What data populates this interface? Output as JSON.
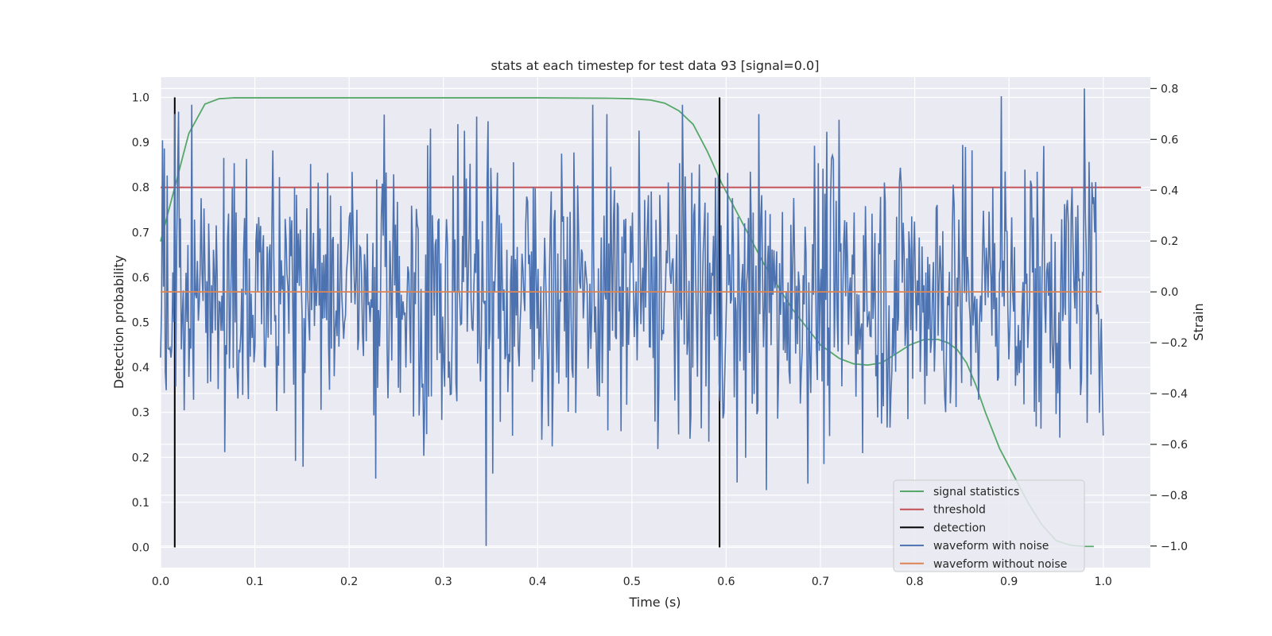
{
  "chart_data": {
    "type": "line",
    "title": "stats at each timestep for test data 93 [signal=0.0]",
    "xlabel": "Time (s)",
    "ylabel": "Detection probability",
    "y2label": "Strain",
    "xlim": [
      0.0,
      1.05
    ],
    "ylim": [
      -0.045,
      1.045
    ],
    "y2lim": [
      -1.085,
      0.845
    ],
    "xticks": [
      "0.0",
      "0.1",
      "0.2",
      "0.3",
      "0.4",
      "0.5",
      "0.6",
      "0.7",
      "0.8",
      "0.9",
      "1.0"
    ],
    "yticks": [
      "0.0",
      "0.1",
      "0.2",
      "0.3",
      "0.4",
      "0.5",
      "0.6",
      "0.7",
      "0.8",
      "0.9",
      "1.0"
    ],
    "y2ticks": [
      "−1.0",
      "−0.8",
      "−0.6",
      "−0.4",
      "−0.2",
      "0.0",
      "0.2",
      "0.4",
      "0.6",
      "0.8"
    ],
    "grid": true,
    "legend_position": "lower-right",
    "legend": [
      "signal statistics",
      "threshold",
      "detection",
      "waveform with noise",
      "waveform without noise"
    ],
    "colors": {
      "signal_statistics": "#55a868",
      "threshold": "#c44e52",
      "detection": "#000000",
      "waveform_with_noise": "#4c72b0",
      "waveform_without_noise": "#dd8452",
      "background": "#eaeaf2"
    },
    "signal_statistics": {
      "x": [
        0.0,
        0.015,
        0.03,
        0.047,
        0.062,
        0.078,
        0.1,
        0.2,
        0.3,
        0.4,
        0.48,
        0.5,
        0.52,
        0.535,
        0.55,
        0.565,
        0.58,
        0.595,
        0.61,
        0.625,
        0.64,
        0.655,
        0.67,
        0.685,
        0.7,
        0.72,
        0.735,
        0.75,
        0.765,
        0.78,
        0.795,
        0.81,
        0.825,
        0.835,
        0.845,
        0.855,
        0.865,
        0.875,
        0.89,
        0.905,
        0.92,
        0.935,
        0.95,
        0.965,
        0.98,
        0.99
      ],
      "y": [
        0.68,
        0.8,
        0.92,
        0.985,
        0.997,
        0.999,
        0.999,
        0.999,
        0.999,
        0.999,
        0.998,
        0.997,
        0.994,
        0.987,
        0.97,
        0.94,
        0.88,
        0.81,
        0.75,
        0.69,
        0.63,
        0.58,
        0.53,
        0.49,
        0.45,
        0.42,
        0.408,
        0.405,
        0.41,
        0.43,
        0.45,
        0.462,
        0.462,
        0.455,
        0.44,
        0.41,
        0.36,
        0.3,
        0.22,
        0.16,
        0.1,
        0.05,
        0.015,
        0.005,
        0.002,
        0.002
      ]
    },
    "threshold": {
      "value": 0.8,
      "x": [
        0.0,
        1.04
      ]
    },
    "detections": [
      0.015,
      0.593
    ],
    "waveform_without_noise": {
      "value": 0.0,
      "x": [
        0.0,
        0.998
      ]
    },
    "waveform_with_noise": {
      "x_range": [
        0.0,
        1.0
      ],
      "num_points": 1000,
      "y_range_strain": [
        -1.0,
        0.8
      ],
      "std_strain": 0.28,
      "spike_points": [
        [
          0.345,
          -1.0
        ],
        [
          0.015,
          0.7
        ],
        [
          0.335,
          0.69
        ],
        [
          0.98,
          0.8
        ],
        [
          0.892,
          0.77
        ],
        [
          0.643,
          -0.78
        ],
        [
          0.612,
          -0.75
        ]
      ]
    }
  }
}
